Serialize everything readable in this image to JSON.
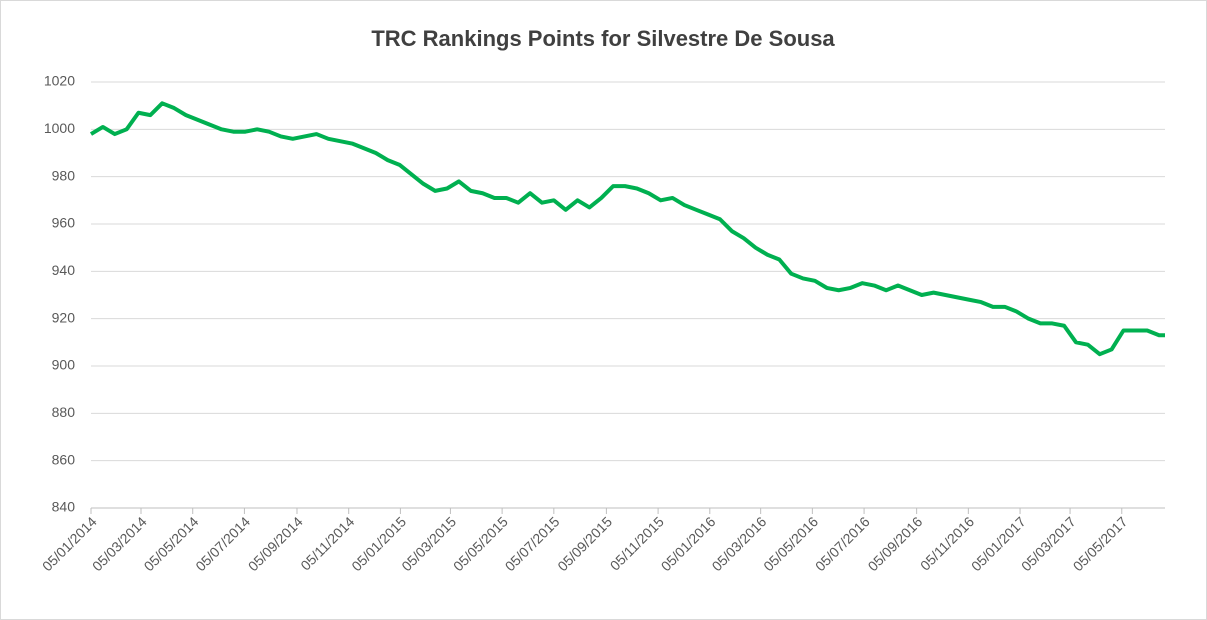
{
  "chart_data": {
    "type": "line",
    "title": "TRC Rankings Points for Silvestre De Sousa",
    "x": [
      "05/01/2014",
      "19/01/2014",
      "02/02/2014",
      "16/02/2014",
      "02/03/2014",
      "16/03/2014",
      "30/03/2014",
      "13/04/2014",
      "27/04/2014",
      "11/05/2014",
      "25/05/2014",
      "08/06/2014",
      "22/06/2014",
      "06/07/2014",
      "20/07/2014",
      "03/08/2014",
      "17/08/2014",
      "31/08/2014",
      "14/09/2014",
      "28/09/2014",
      "12/10/2014",
      "26/10/2014",
      "09/11/2014",
      "23/11/2014",
      "07/12/2014",
      "21/12/2014",
      "04/01/2015",
      "18/01/2015",
      "01/02/2015",
      "15/02/2015",
      "01/03/2015",
      "15/03/2015",
      "29/03/2015",
      "12/04/2015",
      "26/04/2015",
      "10/05/2015",
      "24/05/2015",
      "07/06/2015",
      "21/06/2015",
      "05/07/2015",
      "19/07/2015",
      "02/08/2015",
      "16/08/2015",
      "30/08/2015",
      "13/09/2015",
      "27/09/2015",
      "11/10/2015",
      "25/10/2015",
      "08/11/2015",
      "22/11/2015",
      "06/12/2015",
      "20/12/2015",
      "03/01/2016",
      "17/01/2016",
      "31/01/2016",
      "14/02/2016",
      "28/02/2016",
      "13/03/2016",
      "27/03/2016",
      "10/04/2016",
      "24/04/2016",
      "08/05/2016",
      "22/05/2016",
      "05/06/2016",
      "19/06/2016",
      "03/07/2016",
      "17/07/2016",
      "31/07/2016",
      "14/08/2016",
      "28/08/2016",
      "11/09/2016",
      "25/09/2016",
      "09/10/2016",
      "23/10/2016",
      "06/11/2016",
      "20/11/2016",
      "04/12/2016",
      "18/12/2016",
      "01/01/2017",
      "15/01/2017",
      "29/01/2017",
      "12/02/2017",
      "26/02/2017",
      "12/03/2017",
      "26/03/2017",
      "09/04/2017",
      "23/04/2017",
      "07/05/2017",
      "21/05/2017",
      "04/06/2017",
      "18/06/2017",
      "25/06/2017"
    ],
    "series": [
      {
        "name": "Points",
        "color": "#00b050",
        "values": [
          998,
          1001,
          998,
          1000,
          1007,
          1006,
          1011,
          1009,
          1006,
          1004,
          1002,
          1000,
          999,
          999,
          1000,
          999,
          997,
          996,
          997,
          998,
          996,
          995,
          994,
          992,
          990,
          987,
          985,
          981,
          977,
          974,
          975,
          978,
          974,
          973,
          971,
          971,
          969,
          973,
          969,
          970,
          966,
          970,
          967,
          971,
          976,
          976,
          975,
          973,
          970,
          971,
          968,
          966,
          964,
          962,
          957,
          954,
          950,
          947,
          945,
          939,
          937,
          936,
          933,
          932,
          933,
          935,
          934,
          932,
          934,
          932,
          930,
          931,
          930,
          929,
          928,
          927,
          925,
          925,
          923,
          920,
          918,
          918,
          917,
          910,
          909,
          905,
          907,
          915,
          915,
          915,
          913,
          913
        ]
      }
    ],
    "xlim": [
      "05/01/2014",
      "25/06/2017"
    ],
    "xticks": [
      "05/01/2014",
      "05/03/2014",
      "05/05/2014",
      "05/07/2014",
      "05/09/2014",
      "05/11/2014",
      "05/01/2015",
      "05/03/2015",
      "05/05/2015",
      "05/07/2015",
      "05/09/2015",
      "05/11/2015",
      "05/01/2016",
      "05/03/2016",
      "05/05/2016",
      "05/07/2016",
      "05/09/2016",
      "05/11/2016",
      "05/01/2017",
      "05/03/2017",
      "05/05/2017"
    ],
    "ylim": [
      840,
      1020
    ],
    "yticks": [
      840,
      860,
      880,
      900,
      920,
      940,
      960,
      980,
      1000,
      1020
    ],
    "grid": true
  }
}
